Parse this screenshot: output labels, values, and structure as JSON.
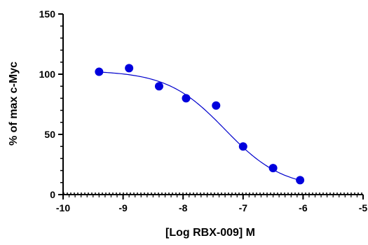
{
  "chart_data": {
    "type": "scatter",
    "xlabel": "[Log RBX-009] M",
    "ylabel": "% of max c-Myc",
    "xlim": [
      -10,
      -5
    ],
    "ylim": [
      0,
      150
    ],
    "x_ticks": [
      -10,
      -9,
      -8,
      -7,
      -6,
      -5
    ],
    "y_ticks": [
      0,
      50,
      100,
      150
    ],
    "grid": false,
    "legend": "none",
    "baseline": {
      "y": 0,
      "style": "dotted"
    },
    "series": [
      {
        "x": [
          -9.4,
          -8.9,
          -8.4,
          -7.95,
          -7.45,
          -7.0,
          -6.5,
          -6.05
        ],
        "y": [
          102,
          105,
          90,
          80,
          74,
          40,
          22,
          12
        ]
      }
    ],
    "fit": {
      "model": "four-parameter logistic",
      "x_range": [
        -9.4,
        -6.05
      ],
      "top": 103,
      "bottom": 5,
      "log_ic50": -7.3,
      "hill_slope": -0.9
    },
    "colors": {
      "marker": "#0000dd",
      "fit_line": "#0000cc",
      "axis": "#000000"
    }
  }
}
